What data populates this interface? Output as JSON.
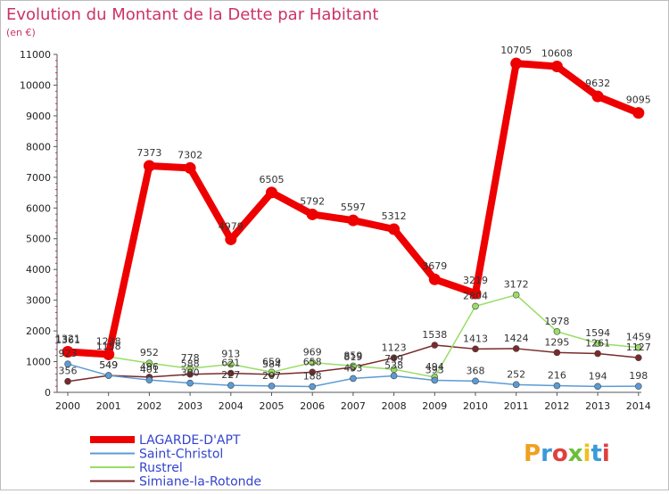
{
  "chart_data": {
    "type": "line",
    "title": "Evolution du Montant de la Dette par Habitant",
    "subtitle": "(en €)",
    "xlabel": "",
    "ylabel": "",
    "ylim": [
      0,
      11000
    ],
    "yticks": [
      0,
      1000,
      2000,
      3000,
      4000,
      5000,
      6000,
      7000,
      8000,
      9000,
      10000,
      11000
    ],
    "grid": false,
    "legend_position": "bottom-left",
    "categories": [
      "2000",
      "2001",
      "2002",
      "2003",
      "2004",
      "2005",
      "2006",
      "2007",
      "2008",
      "2009",
      "2010",
      "2011",
      "2012",
      "2013",
      "2014"
    ],
    "series": [
      {
        "name": "LAGARDE-D'APT",
        "color": "#ee0000",
        "values": [
          1321,
          1238,
          7373,
          7302,
          4979,
          6505,
          5792,
          5597,
          5312,
          3679,
          3219,
          10705,
          10608,
          9632,
          9095
        ]
      },
      {
        "name": "Saint-Christol",
        "color": "#5b9bd5",
        "values": [
          923,
          549,
          401,
          300,
          227,
          207,
          188,
          453,
          538,
          393,
          368,
          252,
          216,
          194,
          198
        ]
      },
      {
        "name": "Rustrel",
        "color": "#99dd66",
        "values": [
          1361,
          1158,
          952,
          778,
          913,
          659,
          969,
          859,
          749,
          494,
          2804,
          3172,
          1978,
          1594,
          1459
        ]
      },
      {
        "name": "Simiane-la-Rotonde",
        "color": "#7a2a2a",
        "values": [
          356,
          549,
          496,
          588,
          621,
          584,
          658,
          819,
          1123,
          1538,
          1413,
          1424,
          1295,
          1261,
          1127
        ]
      }
    ]
  },
  "brand": {
    "logo_text": "Proxiti",
    "logo_colors": [
      "#f0a020",
      "#3a9ad9",
      "#e04040",
      "#6bbf3a",
      "#f0c020",
      "#3a9ad9",
      "#e04040"
    ]
  }
}
